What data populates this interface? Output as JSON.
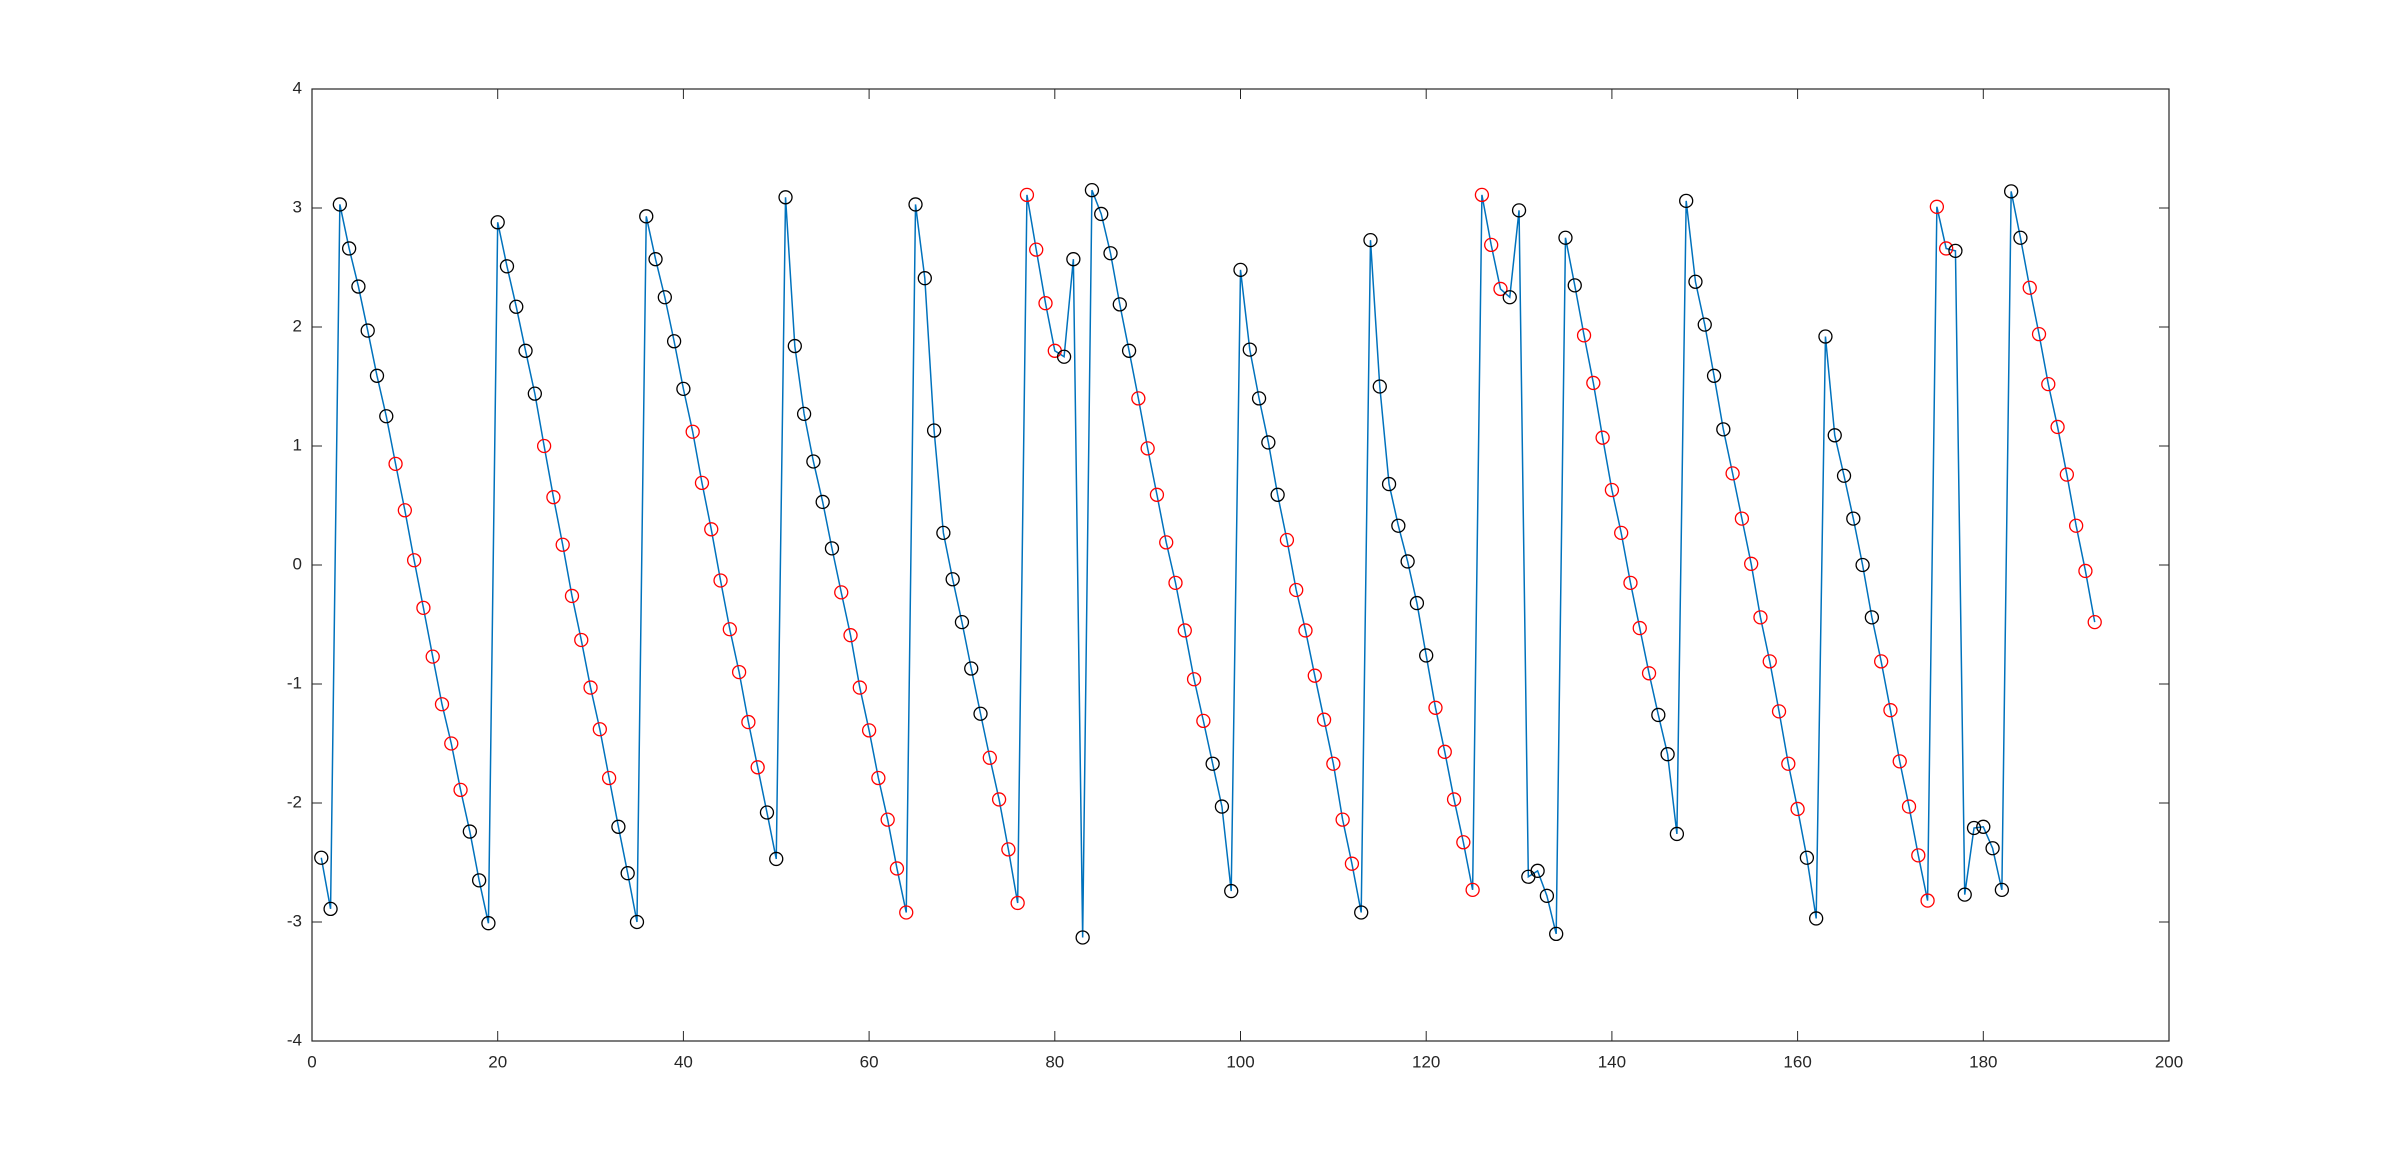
{
  "chart_data": {
    "type": "line",
    "marker": "o",
    "grid": false,
    "box": true,
    "xlim": [
      0,
      200
    ],
    "xticks": [
      0,
      20,
      40,
      60,
      80,
      100,
      120,
      140,
      160,
      180,
      200
    ],
    "ylim": [
      -4,
      4
    ],
    "yticks": [
      -4,
      -3,
      -2,
      -1,
      0,
      1,
      2,
      3,
      4
    ],
    "x": [
      1,
      2,
      3,
      4,
      5,
      6,
      7,
      8,
      9,
      10,
      11,
      12,
      13,
      14,
      15,
      16,
      17,
      18,
      19,
      20,
      21,
      22,
      23,
      24,
      25,
      26,
      27,
      28,
      29,
      30,
      31,
      32,
      33,
      34,
      35,
      36,
      37,
      38,
      39,
      40,
      41,
      42,
      43,
      44,
      45,
      46,
      47,
      48,
      49,
      50,
      51,
      52,
      53,
      54,
      55,
      56,
      57,
      58,
      59,
      60,
      61,
      62,
      63,
      64,
      65,
      66,
      67,
      68,
      69,
      70,
      71,
      72,
      73,
      74,
      75,
      76,
      77,
      78,
      79,
      80,
      81,
      82,
      83,
      84,
      85,
      86,
      87,
      88,
      89,
      90,
      91,
      92,
      93,
      94,
      95,
      96,
      97,
      98,
      99,
      100,
      101,
      102,
      103,
      104,
      105,
      106,
      107,
      108,
      109,
      110,
      111,
      112,
      113,
      114,
      115,
      116,
      117,
      118,
      119,
      120,
      121,
      122,
      123,
      124,
      125,
      126,
      127,
      128,
      129,
      130,
      131,
      132,
      133,
      134,
      135,
      136,
      137,
      138,
      139,
      140,
      141,
      142,
      143,
      144,
      145,
      146,
      147,
      148,
      149,
      150,
      151,
      152,
      153,
      154,
      155,
      156,
      157,
      158,
      159,
      160,
      161,
      162,
      163,
      164,
      165,
      166,
      167,
      168,
      169,
      170,
      171,
      172,
      173,
      174,
      175,
      176,
      177,
      178,
      179,
      180,
      181,
      182,
      183,
      184,
      185,
      186,
      187,
      188,
      189,
      190,
      191,
      192
    ],
    "series": [
      {
        "color": "#0072bd",
        "values": [
          -2.46,
          -2.89,
          3.03,
          2.66,
          2.34,
          1.97,
          1.59,
          1.25,
          0.85,
          0.46,
          0.04,
          -0.36,
          -0.77,
          -1.17,
          -1.5,
          -1.89,
          -2.24,
          -2.65,
          -3.01,
          2.88,
          2.51,
          2.17,
          1.8,
          1.44,
          1.0,
          0.57,
          0.17,
          -0.26,
          -0.63,
          -1.03,
          -1.38,
          -1.79,
          -2.2,
          -2.59,
          -3.0,
          2.93,
          2.57,
          2.25,
          1.88,
          1.48,
          1.12,
          0.69,
          0.3,
          -0.13,
          -0.54,
          -0.9,
          -1.32,
          -1.7,
          -2.08,
          -2.47,
          3.09,
          1.84,
          1.27,
          0.87,
          0.53,
          0.14,
          -0.23,
          -0.59,
          -1.03,
          -1.39,
          -1.79,
          -2.14,
          -2.55,
          -2.92,
          3.03,
          2.41,
          1.13,
          0.27,
          -0.12,
          -0.48,
          -0.87,
          -1.25,
          -1.62,
          -1.97,
          -2.39,
          -2.84,
          3.11,
          2.65,
          2.2,
          1.8,
          1.75,
          2.57,
          -3.13,
          3.15,
          2.95,
          2.62,
          2.19,
          1.8,
          1.4,
          0.98,
          0.59,
          0.19,
          -0.15,
          -0.55,
          -0.96,
          -1.31,
          -1.67,
          -2.03,
          -2.74,
          2.48,
          1.81,
          1.4,
          1.03,
          0.59,
          0.21,
          -0.21,
          -0.55,
          -0.93,
          -1.3,
          -1.67,
          -2.14,
          -2.51,
          -2.92,
          2.73,
          1.5,
          0.68,
          0.33,
          0.03,
          -0.32,
          -0.76,
          -1.2,
          -1.57,
          -1.97,
          -2.33,
          -2.73,
          3.11,
          2.69,
          2.32,
          2.25,
          2.98,
          -2.62,
          -2.57,
          -2.78,
          -3.1,
          2.75,
          2.35,
          1.93,
          1.53,
          1.07,
          0.63,
          0.27,
          -0.15,
          -0.53,
          -0.91,
          -1.26,
          -1.59,
          -2.26,
          3.06,
          2.38,
          2.02,
          1.59,
          1.14,
          0.77,
          0.39,
          0.01,
          -0.44,
          -0.81,
          -1.23,
          -1.67,
          -2.05,
          -2.46,
          -2.97,
          1.92,
          1.09,
          0.75,
          0.39,
          0.0,
          -0.44,
          -0.81,
          -1.22,
          -1.65,
          -2.03,
          -2.44,
          -2.82,
          3.01,
          2.66,
          2.64,
          -2.77,
          -2.21,
          -2.2,
          -2.38,
          -2.73,
          3.14,
          2.75,
          2.33,
          1.94,
          1.52,
          1.16,
          0.76,
          0.33,
          -0.05,
          -0.48
        ],
        "marker_colors": [
          "black",
          "black",
          "black",
          "black",
          "black",
          "black",
          "black",
          "black",
          "red",
          "red",
          "red",
          "red",
          "red",
          "red",
          "red",
          "red",
          "black",
          "black",
          "black",
          "black",
          "black",
          "black",
          "black",
          "black",
          "red",
          "red",
          "red",
          "red",
          "red",
          "red",
          "red",
          "red",
          "black",
          "black",
          "black",
          "black",
          "black",
          "black",
          "black",
          "black",
          "red",
          "red",
          "red",
          "red",
          "red",
          "red",
          "red",
          "red",
          "black",
          "black",
          "black",
          "black",
          "black",
          "black",
          "black",
          "black",
          "red",
          "red",
          "red",
          "red",
          "red",
          "red",
          "red",
          "red",
          "black",
          "black",
          "black",
          "black",
          "black",
          "black",
          "black",
          "black",
          "red",
          "red",
          "red",
          "red",
          "red",
          "red",
          "red",
          "red",
          "black",
          "black",
          "black",
          "black",
          "black",
          "black",
          "black",
          "black",
          "red",
          "red",
          "red",
          "red",
          "red",
          "red",
          "red",
          "red",
          "black",
          "black",
          "black",
          "black",
          "black",
          "black",
          "black",
          "black",
          "red",
          "red",
          "red",
          "red",
          "red",
          "red",
          "red",
          "red",
          "black",
          "black",
          "black",
          "black",
          "black",
          "black",
          "black",
          "black",
          "red",
          "red",
          "red",
          "red",
          "red",
          "red",
          "red",
          "red",
          "black",
          "black",
          "black",
          "black",
          "black",
          "black",
          "black",
          "black",
          "red",
          "red",
          "red",
          "red",
          "red",
          "red",
          "red",
          "red",
          "black",
          "black",
          "black",
          "black",
          "black",
          "black",
          "black",
          "black",
          "red",
          "red",
          "red",
          "red",
          "red",
          "red",
          "red",
          "red",
          "black",
          "black",
          "black",
          "black",
          "black",
          "black",
          "black",
          "black",
          "red",
          "red",
          "red",
          "red",
          "red",
          "red",
          "red",
          "red",
          "black",
          "black",
          "black",
          "black",
          "black",
          "black",
          "black",
          "black",
          "red",
          "red",
          "red",
          "red",
          "red",
          "red",
          "red",
          "red"
        ]
      }
    ]
  }
}
